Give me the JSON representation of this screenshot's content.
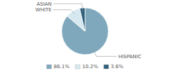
{
  "chart_data": {
    "type": "pie",
    "categories": [
      "HISPANIC",
      "WHITE",
      "ASIAN"
    ],
    "values": [
      86.1,
      10.2,
      3.6
    ],
    "value_labels": [
      "86.1%",
      "10.2%",
      "3.6%"
    ],
    "colors": [
      "#7fa8bc",
      "#d6e8f0",
      "#2e5f7a"
    ],
    "legend": "bottom"
  }
}
